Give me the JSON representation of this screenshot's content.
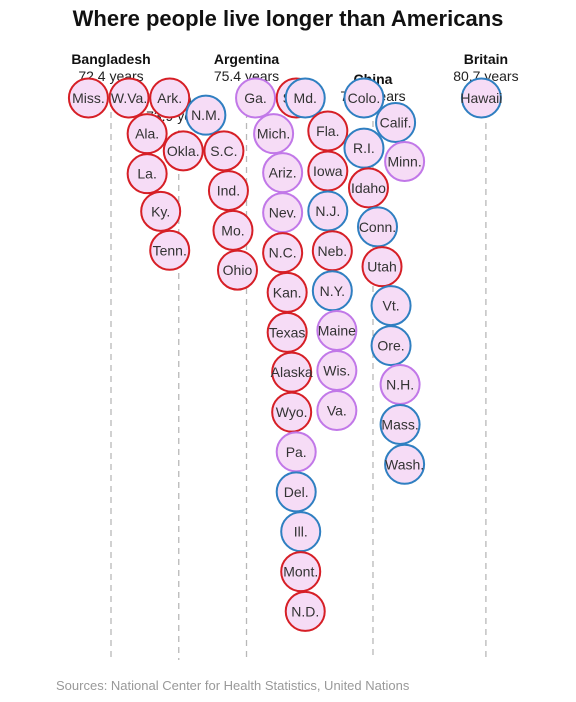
{
  "title": "Where people live longer than Americans",
  "source": "Sources: National Center for Health Statistics, United Nations",
  "colors": {
    "red": "#d61f26",
    "purple": "#c178e8",
    "blue": "#2f7fc1",
    "fill": "#f6dcf6",
    "guide": "#b8b8b8"
  },
  "chart_data": {
    "type": "scatter",
    "title": "Where people live longer than Americans",
    "xlabel": "",
    "ylabel": "",
    "benchmarks": [
      {
        "name": "Bangladesh",
        "value": 72.4,
        "label": "72.4 years"
      },
      {
        "name": "Iran",
        "value": 73.9,
        "label": "73.9 years"
      },
      {
        "name": "Argentina",
        "value": 75.4,
        "label": "75.4 years"
      },
      {
        "name": "China",
        "value": 78.2,
        "label": "78.2 years"
      },
      {
        "name": "Britain",
        "value": 80.7,
        "label": "80.7 years"
      }
    ],
    "points": [
      {
        "label": "Miss.",
        "x": 71.9,
        "color": "red"
      },
      {
        "label": "W.Va.",
        "x": 72.8,
        "color": "red"
      },
      {
        "label": "Ala.",
        "x": 73.2,
        "color": "red"
      },
      {
        "label": "La.",
        "x": 73.2,
        "color": "red"
      },
      {
        "label": "Ky.",
        "x": 73.5,
        "color": "red"
      },
      {
        "label": "Ark.",
        "x": 73.7,
        "color": "red"
      },
      {
        "label": "Tenn.",
        "x": 73.7,
        "color": "red"
      },
      {
        "label": "Okla.",
        "x": 74.0,
        "color": "red"
      },
      {
        "label": "N.M.",
        "x": 74.5,
        "color": "blue"
      },
      {
        "label": "S.C.",
        "x": 74.9,
        "color": "red"
      },
      {
        "label": "Ind.",
        "x": 75.0,
        "color": "red"
      },
      {
        "label": "Mo.",
        "x": 75.1,
        "color": "red"
      },
      {
        "label": "Ohio",
        "x": 75.2,
        "color": "red"
      },
      {
        "label": "Ga.",
        "x": 75.6,
        "color": "purple"
      },
      {
        "label": "Mich.",
        "x": 76.0,
        "color": "purple"
      },
      {
        "label": "Ariz.",
        "x": 76.2,
        "color": "purple"
      },
      {
        "label": "Nev.",
        "x": 76.2,
        "color": "purple"
      },
      {
        "label": "N.C.",
        "x": 76.2,
        "color": "red"
      },
      {
        "label": "Kan.",
        "x": 76.3,
        "color": "red"
      },
      {
        "label": "Texas",
        "x": 76.3,
        "color": "red"
      },
      {
        "label": "Alaska",
        "x": 76.4,
        "color": "red"
      },
      {
        "label": "Wyo.",
        "x": 76.4,
        "color": "red"
      },
      {
        "label": "S.D.",
        "x": 76.5,
        "color": "red"
      },
      {
        "label": "Pa.",
        "x": 76.5,
        "color": "purple"
      },
      {
        "label": "Del.",
        "x": 76.5,
        "color": "blue"
      },
      {
        "label": "Ill.",
        "x": 76.6,
        "color": "blue"
      },
      {
        "label": "Mont.",
        "x": 76.6,
        "color": "red"
      },
      {
        "label": "N.D.",
        "x": 76.7,
        "color": "red"
      },
      {
        "label": "Md.",
        "x": 76.7,
        "color": "blue"
      },
      {
        "label": "Fla.",
        "x": 77.2,
        "color": "red"
      },
      {
        "label": "Iowa",
        "x": 77.2,
        "color": "red"
      },
      {
        "label": "Neb.",
        "x": 77.3,
        "color": "red"
      },
      {
        "label": "N.Y.",
        "x": 77.3,
        "color": "blue"
      },
      {
        "label": "N.J.",
        "x": 77.2,
        "color": "blue"
      },
      {
        "label": "Maine",
        "x": 77.4,
        "color": "purple"
      },
      {
        "label": "Wis.",
        "x": 77.4,
        "color": "purple"
      },
      {
        "label": "Va.",
        "x": 77.4,
        "color": "purple"
      },
      {
        "label": "Colo.",
        "x": 78.0,
        "color": "blue"
      },
      {
        "label": "Idaho",
        "x": 78.1,
        "color": "red"
      },
      {
        "label": "R.I.",
        "x": 78.0,
        "color": "blue"
      },
      {
        "label": "Utah",
        "x": 78.4,
        "color": "red"
      },
      {
        "label": "Conn.",
        "x": 78.3,
        "color": "blue"
      },
      {
        "label": "Vt.",
        "x": 78.6,
        "color": "blue"
      },
      {
        "label": "Calif.",
        "x": 78.7,
        "color": "blue"
      },
      {
        "label": "Ore.",
        "x": 78.6,
        "color": "blue"
      },
      {
        "label": "N.H.",
        "x": 78.8,
        "color": "purple"
      },
      {
        "label": "Mass.",
        "x": 78.8,
        "color": "blue"
      },
      {
        "label": "Minn.",
        "x": 78.9,
        "color": "purple"
      },
      {
        "label": "Wash.",
        "x": 78.9,
        "color": "blue"
      },
      {
        "label": "Hawaii",
        "x": 80.6,
        "color": "blue"
      }
    ]
  }
}
